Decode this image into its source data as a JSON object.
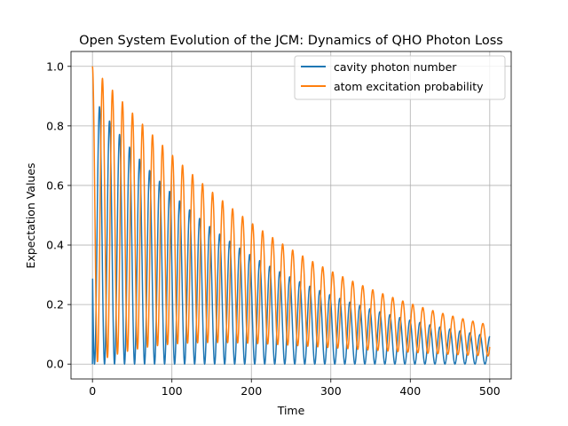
{
  "chart_data": {
    "type": "line",
    "title": "Open System Evolution of the JCM: Dynamics of QHO Photon Loss",
    "xlabel": "Time",
    "ylabel": "Expectation Values",
    "xlim": [
      -27,
      527
    ],
    "ylim": [
      -0.05,
      1.05
    ],
    "xticks": [
      0,
      100,
      200,
      300,
      400,
      500
    ],
    "yticks": [
      0.0,
      0.2,
      0.4,
      0.6,
      0.8,
      1.0
    ],
    "xtick_labels": [
      "0",
      "100",
      "200",
      "300",
      "400",
      "500"
    ],
    "ytick_labels": [
      "0.0",
      "0.2",
      "0.4",
      "0.6",
      "0.8",
      "1.0"
    ],
    "grid": true,
    "legend_position": "top-right",
    "model": {
      "time_start": 0,
      "time_end": 500,
      "oscillation_period": 12.6,
      "damping_rate": 0.00452,
      "photon_phase_lag": 2.6
    },
    "series": [
      {
        "name": "cavity photon number",
        "color": "#1f77b4",
        "peaks": [
          0.88,
          0.84,
          0.79,
          0.74,
          0.7,
          0.66,
          0.62,
          0.59,
          0.55,
          0.52,
          0.49,
          0.46,
          0.44,
          0.41,
          0.39,
          0.37,
          0.35,
          0.33,
          0.31,
          0.29,
          0.275,
          0.26,
          0.245,
          0.23,
          0.22,
          0.205,
          0.195,
          0.185,
          0.175,
          0.165,
          0.155,
          0.145,
          0.14,
          0.13,
          0.125,
          0.115,
          0.11,
          0.105,
          0.1,
          0.095
        ],
        "troughs": [
          0.0
        ]
      },
      {
        "name": "atom excitation probability",
        "color": "#ff7f0e",
        "peaks": [
          1.0,
          0.94,
          0.89,
          0.83,
          0.78,
          0.74,
          0.7,
          0.66,
          0.62,
          0.58,
          0.55,
          0.52,
          0.49,
          0.46,
          0.44,
          0.41,
          0.39,
          0.37,
          0.35,
          0.33,
          0.31,
          0.29,
          0.275,
          0.26,
          0.245,
          0.23,
          0.22,
          0.205,
          0.195,
          0.185,
          0.175,
          0.165,
          0.155,
          0.145,
          0.14,
          0.13,
          0.125,
          0.115,
          0.11,
          0.105
        ],
        "troughs": [
          0.09,
          0.085,
          0.08,
          0.075,
          0.07,
          0.065,
          0.06,
          0.055,
          0.05,
          0.045,
          0.04,
          0.035,
          0.03,
          0.025,
          0.02
        ]
      }
    ]
  }
}
